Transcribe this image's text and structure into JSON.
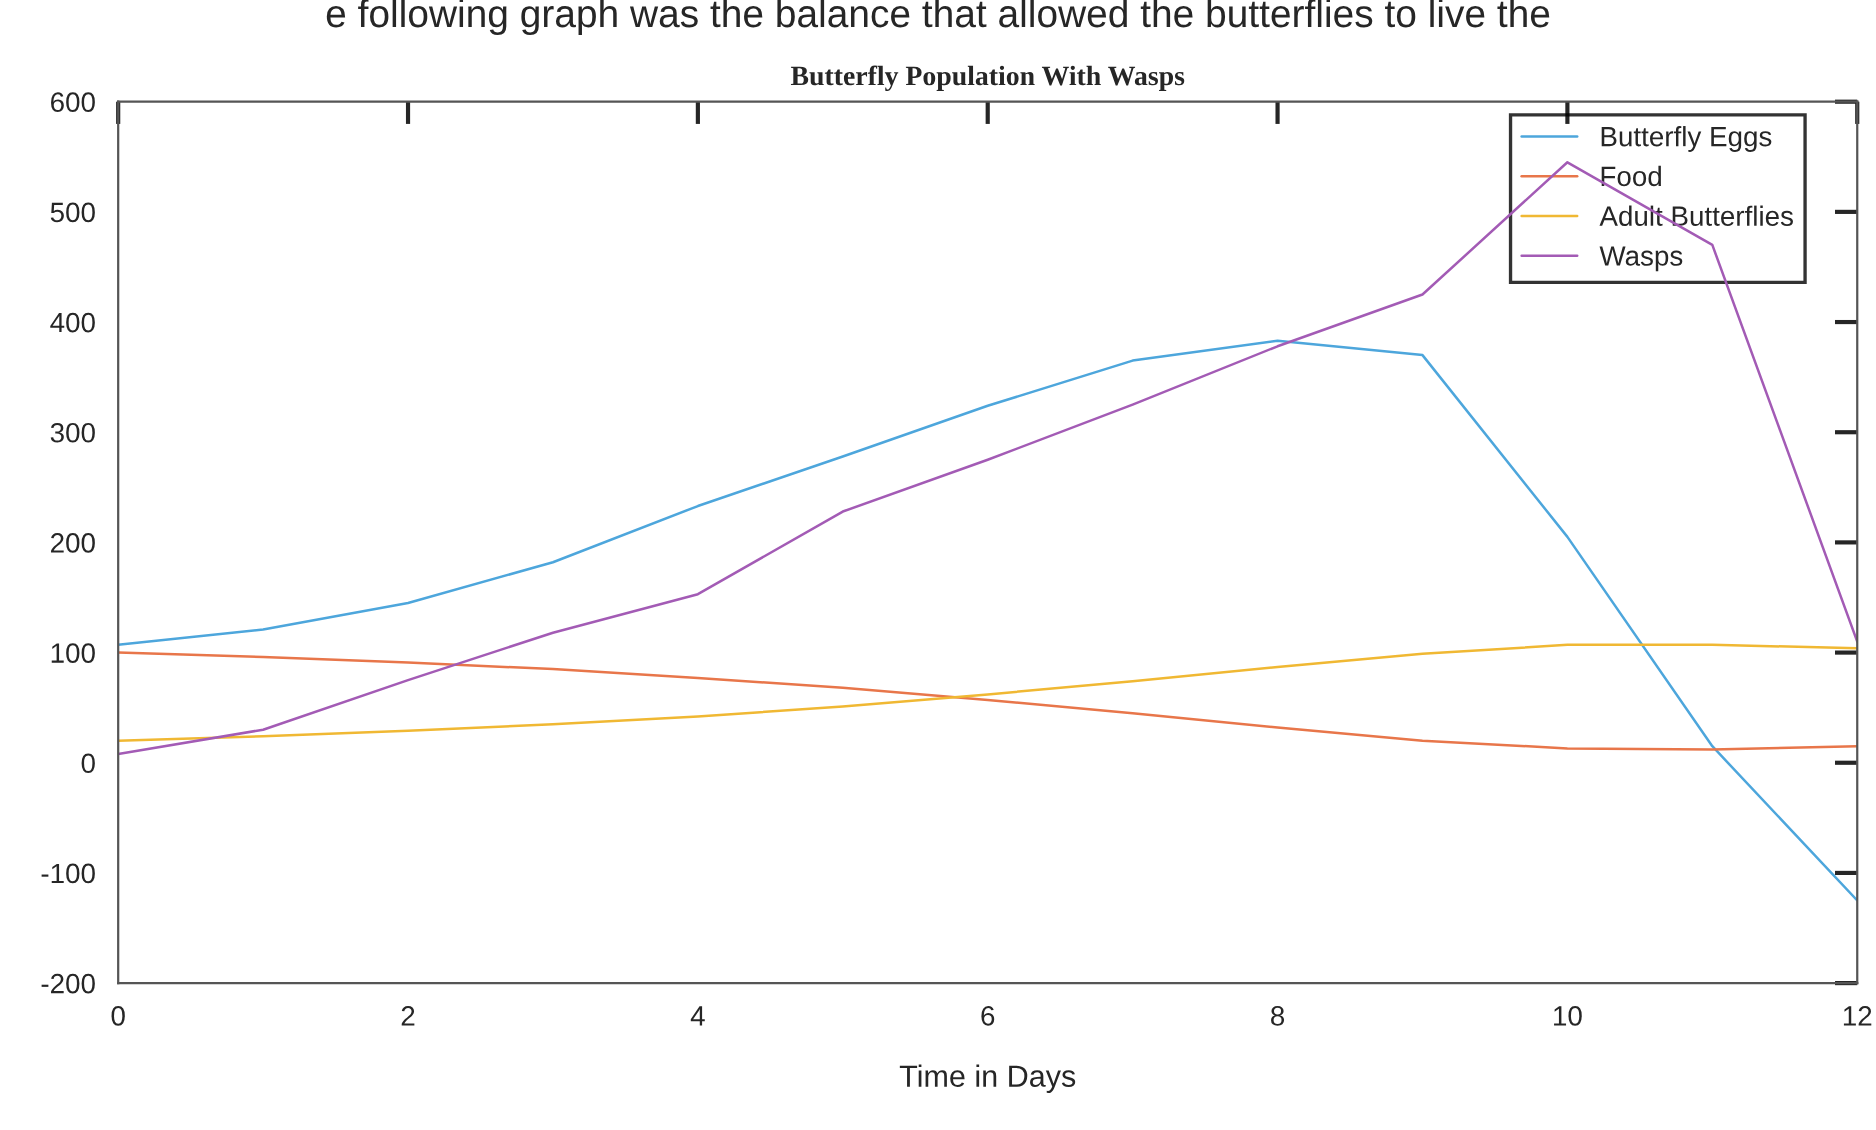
{
  "chart_data": {
    "type": "line",
    "title": "Butterfly Population With Wasps",
    "xlabel": "Time in Days",
    "annotations": [
      "e following graph was the balance that allowed the butterflies to live the"
    ],
    "x": [
      0,
      1,
      2,
      3,
      4,
      5,
      6,
      7,
      8,
      9,
      10,
      11,
      12
    ],
    "series": [
      {
        "name": "Butterfly Eggs",
        "color": "#4da6dc",
        "values": [
          107,
          121,
          145,
          182,
          233,
          278,
          324,
          365,
          383,
          370,
          205,
          15,
          -125
        ]
      },
      {
        "name": "Food",
        "color": "#e8764a",
        "values": [
          100,
          96,
          91,
          85,
          77,
          68,
          57,
          45,
          32,
          20,
          13,
          12,
          15
        ]
      },
      {
        "name": "Adult Butterflies",
        "color": "#f0b833",
        "values": [
          20,
          24,
          29,
          35,
          42,
          51,
          62,
          74,
          87,
          99,
          107,
          107,
          104
        ]
      },
      {
        "name": "Wasps",
        "color": "#a35bb5",
        "values": [
          8,
          30,
          75,
          118,
          153,
          228,
          275,
          325,
          378,
          425,
          545,
          470,
          110
        ]
      }
    ],
    "xlim": [
      0,
      12
    ],
    "xticks": [
      0,
      2,
      4,
      6,
      8,
      10,
      12
    ],
    "ylim": [
      -200,
      600
    ],
    "yticks": [
      -200,
      -100,
      0,
      100,
      200,
      300,
      400,
      500,
      600
    ],
    "grid": false,
    "legend": "top right",
    "line_style": "solid"
  }
}
